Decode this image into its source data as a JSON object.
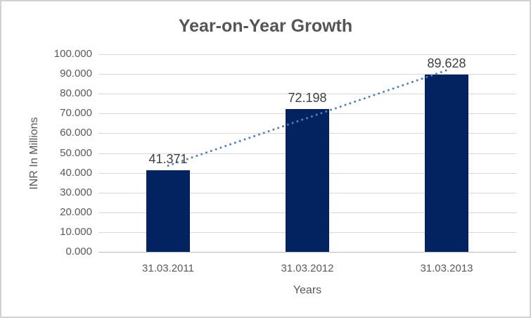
{
  "chart_data": {
    "type": "bar",
    "title": "Year-on-Year Growth",
    "xlabel": "Years",
    "ylabel": "INR In Millions",
    "categories": [
      "31.03.2011",
      "31.03.2012",
      "31.03.2013"
    ],
    "values": [
      41.371,
      72.198,
      89.628
    ],
    "data_labels": [
      "41.371",
      "72.198",
      "89.628"
    ],
    "ylim": [
      0,
      100
    ],
    "ytick_step": 10,
    "ytick_labels": [
      "0.000",
      "10.000",
      "20.000",
      "30.000",
      "40.000",
      "50.000",
      "60.000",
      "70.000",
      "80.000",
      "90.000",
      "100.000"
    ],
    "grid": true,
    "legend": "none",
    "trendline": {
      "type": "linear",
      "style": "dotted-round"
    },
    "colors": {
      "bar": "#02235F",
      "trendline": "#4D81C3",
      "gridline": "#D9D9D9",
      "axis_line": "#C0C0C0",
      "axis_text": "#595959",
      "data_label_text": "#404040",
      "title_text": "#555555",
      "border": "#D2D2D2",
      "background": "#FFFFFF"
    }
  }
}
